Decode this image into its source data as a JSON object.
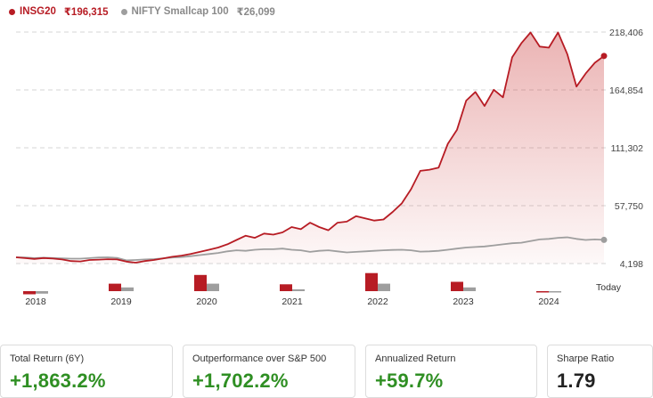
{
  "legend": [
    {
      "ticker": "INSG20",
      "value": "₹196,315",
      "color": "#b71c24"
    },
    {
      "ticker": "NIFTY Smallcap 100",
      "value": "₹26,099",
      "color": "#9e9e9e"
    }
  ],
  "colors": {
    "primary": "#b71c24",
    "secondary": "#9e9e9e",
    "positive": "#2f8f23",
    "grid": "#d6d6d6"
  },
  "chart_data": {
    "type": "line",
    "y_tick_labels": [
      "218,406",
      "164,854",
      "111,302",
      "57,750",
      "4,198"
    ],
    "ylim": [
      4198,
      218406
    ],
    "x_tick_labels": [
      "2018",
      "2019",
      "2020",
      "2021",
      "2022",
      "2023",
      "2024"
    ],
    "end_label": "Today",
    "grid": true,
    "series": [
      {
        "name": "INSG20",
        "color": "#b71c24",
        "values": [
          10000,
          9200,
          8500,
          9300,
          8800,
          8000,
          6500,
          6200,
          7500,
          7800,
          8200,
          8000,
          6000,
          5000,
          6500,
          7500,
          9000,
          10500,
          11500,
          13000,
          15000,
          17000,
          19000,
          22000,
          26000,
          30000,
          28000,
          32000,
          31000,
          33000,
          38000,
          36000,
          42000,
          38000,
          35000,
          42000,
          43000,
          48000,
          46000,
          44000,
          45000,
          52000,
          60000,
          73000,
          90000,
          91000,
          93000,
          115000,
          128000,
          155000,
          163000,
          150000,
          165000,
          158000,
          195000,
          208000,
          218000,
          205000,
          204000,
          218000,
          198000,
          168000,
          180000,
          190000,
          196315
        ]
      },
      {
        "name": "NIFTY Smallcap 100",
        "color": "#9e9e9e",
        "values": [
          10000,
          9800,
          9200,
          9600,
          9300,
          9000,
          8700,
          8700,
          9200,
          9800,
          10000,
          9500,
          7200,
          7500,
          8000,
          8300,
          9000,
          9800,
          10200,
          11000,
          12000,
          13000,
          14000,
          15500,
          16500,
          16000,
          17000,
          17500,
          17500,
          18000,
          17000,
          16500,
          15000,
          16000,
          16500,
          15500,
          14500,
          15000,
          15500,
          16000,
          16500,
          16800,
          17000,
          16500,
          15200,
          15500,
          16000,
          17000,
          18000,
          19000,
          19500,
          20000,
          21000,
          22000,
          23000,
          23500,
          25000,
          26500,
          27000,
          28000,
          28500,
          27000,
          26000,
          26500,
          26099
        ]
      }
    ],
    "annual_bars": {
      "categories": [
        "2018",
        "2019",
        "2020",
        "2021",
        "2022",
        "2023",
        "2024"
      ],
      "series": [
        {
          "name": "INSG20",
          "values": [
            -0.25,
            0.6,
            1.3,
            0.55,
            1.45,
            0.75,
            -0.1
          ]
        },
        {
          "name": "NIFTY Smallcap 100",
          "values": [
            -0.2,
            0.3,
            0.6,
            0.15,
            0.6,
            0.3,
            -0.1
          ]
        }
      ]
    }
  },
  "cards": [
    {
      "label": "Total Return (6Y)",
      "value": "+1,863.2%",
      "style": "pos"
    },
    {
      "label": "Outperformance over S&P 500",
      "value": "+1,702.2%",
      "style": "pos"
    },
    {
      "label": "Annualized Return",
      "value": "+59.7%",
      "style": "pos"
    },
    {
      "label": "Sharpe Ratio",
      "value": "1.79",
      "style": "neutral"
    }
  ]
}
